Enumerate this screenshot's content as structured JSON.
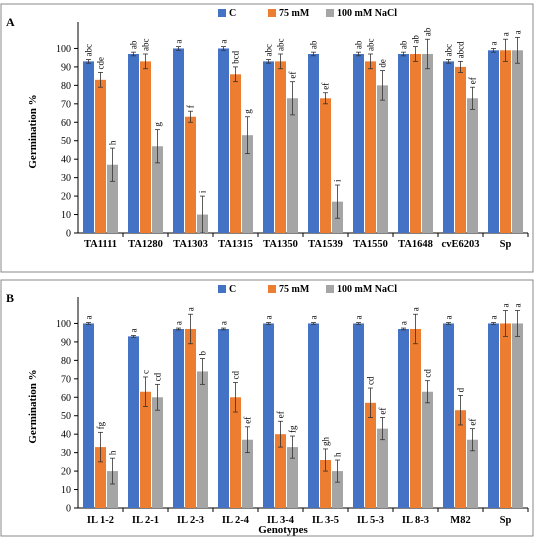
{
  "colors": {
    "C": "#4472C4",
    "75mM": "#ED7D31",
    "100mM": "#A5A5A5"
  },
  "xlabel_global": "Genotypes",
  "chart_data": [
    {
      "type": "bar",
      "panel": "A",
      "ylabel": "Germination %",
      "ylim": [
        0,
        110
      ],
      "yticks": [
        0,
        10,
        20,
        30,
        40,
        50,
        60,
        70,
        80,
        90,
        100
      ],
      "legend": [
        "C",
        "75 mM",
        "100 mM NaCl"
      ],
      "categories": [
        "TA1111",
        "TA1280",
        "TA1303",
        "TA1315",
        "TA1350",
        "TA1539",
        "TA1550",
        "TA1648",
        "cvE6203",
        "Sp"
      ],
      "series": [
        {
          "name": "C",
          "values": [
            93,
            97,
            100,
            100,
            93,
            97,
            97,
            97,
            93,
            99
          ],
          "errors": [
            1,
            1,
            1,
            1,
            1,
            1,
            1,
            1,
            1,
            1
          ],
          "letters": [
            "abc",
            "ab",
            "a",
            "a",
            "abc",
            "ab",
            "ab",
            "ab",
            "abc",
            "a"
          ]
        },
        {
          "name": "75 mM",
          "values": [
            83,
            93,
            63,
            86,
            93,
            73,
            93,
            97,
            90,
            99
          ],
          "errors": [
            4,
            4,
            3,
            4,
            4,
            3,
            4,
            4,
            3,
            6
          ],
          "letters": [
            "cde",
            "abc",
            "f",
            "bcd",
            "abc",
            "ef",
            "abc",
            "ab",
            "abcd",
            "a"
          ]
        },
        {
          "name": "100 mM NaCl",
          "values": [
            37,
            47,
            10,
            53,
            73,
            17,
            80,
            97,
            73,
            99
          ],
          "errors": [
            9,
            9,
            10,
            10,
            9,
            9,
            8,
            8,
            6,
            7
          ],
          "letters": [
            "h",
            "g",
            "i",
            "g",
            "ef",
            "i",
            "de",
            "ab",
            "ef",
            "a"
          ]
        }
      ]
    },
    {
      "type": "bar",
      "panel": "B",
      "ylabel": "Germination %",
      "xlabel": "Genotypes",
      "ylim": [
        0,
        110
      ],
      "yticks": [
        0,
        10,
        20,
        30,
        40,
        50,
        60,
        70,
        80,
        90,
        100
      ],
      "legend": [
        "C",
        "75 mM",
        "100 mM NaCl"
      ],
      "categories": [
        "IL 1-2",
        "IL 2-1",
        "IL 2-3",
        "IL 2-4",
        "IL 3-4",
        "IL 3-5",
        "IL 5-3",
        "IL 8-3",
        "M82",
        "Sp"
      ],
      "series": [
        {
          "name": "C",
          "values": [
            100,
            93,
            97,
            97,
            100,
            100,
            100,
            97,
            100,
            100
          ],
          "errors": [
            0.5,
            0.5,
            0.5,
            0.5,
            0.5,
            0.5,
            0.5,
            0.5,
            0.5,
            0.5
          ],
          "letters": [
            "a",
            "a",
            "a",
            "a",
            "a",
            "a",
            "a",
            "a",
            "a",
            "a"
          ]
        },
        {
          "name": "75 mM",
          "values": [
            33,
            63,
            97,
            60,
            40,
            26,
            57,
            97,
            53,
            100
          ],
          "errors": [
            8,
            8,
            8,
            8,
            7,
            6,
            8,
            8,
            8,
            7
          ],
          "letters": [
            "fg",
            "c",
            "a",
            "cd",
            "ef",
            "gh",
            "cd",
            "a",
            "d",
            "a"
          ]
        },
        {
          "name": "100 mM NaCl",
          "values": [
            20,
            60,
            74,
            37,
            33,
            20,
            43,
            63,
            37,
            100
          ],
          "errors": [
            7,
            7,
            7,
            7,
            6,
            6,
            6,
            6,
            6,
            7
          ],
          "letters": [
            "h",
            "cd",
            "b",
            "ef",
            "fg",
            "h",
            "ef",
            "cd",
            "ef",
            "a"
          ]
        }
      ]
    }
  ]
}
